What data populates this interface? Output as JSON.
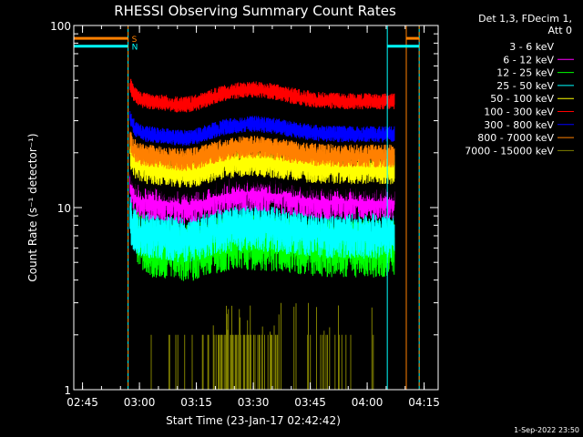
{
  "chart_data": {
    "type": "line",
    "title": "RHESSI Observing Summary Count Rates",
    "xlabel": "Start Time (23-Jan-17 02:42:42)",
    "ylabel": "Count Rate (s⁻¹ detector⁻¹)",
    "yscale": "log",
    "ylim": [
      1,
      100
    ],
    "xlim_minutes_after_start": [
      0,
      96
    ],
    "x_ticks": [
      {
        "label": "02:45",
        "t": 2.3
      },
      {
        "label": "03:00",
        "t": 17.3
      },
      {
        "label": "03:15",
        "t": 32.3
      },
      {
        "label": "03:30",
        "t": 47.3
      },
      {
        "label": "03:45",
        "t": 62.3
      },
      {
        "label": "04:00",
        "t": 77.3
      },
      {
        "label": "04:15",
        "t": 92.3
      }
    ],
    "y_ticks": [
      {
        "label": "1",
        "v": 1
      },
      {
        "label": "10",
        "v": 10
      },
      {
        "label": "100",
        "v": 100
      }
    ],
    "legend_header": [
      "Det 1,3, FDecim 1,",
      "Att 0"
    ],
    "legend_placement": "right",
    "data_window_minutes": [
      14.3,
      84.5
    ],
    "series": [
      {
        "name": "3 - 6 keV",
        "color": "#000000",
        "start": 14.8,
        "end": 84.5,
        "base": 13.5,
        "noise": 0.22,
        "bump": 0.12
      },
      {
        "name": "6 - 12 keV",
        "color": "#ff00ff",
        "start": 14.8,
        "end": 84.5,
        "base": 11.0,
        "noise": 0.25,
        "bump": 0.12
      },
      {
        "name": "12 - 25 keV",
        "color": "#00ff00",
        "start": 16.5,
        "end": 84.5,
        "base": 6.0,
        "noise": 0.35,
        "bump": 0.1
      },
      {
        "name": "25 - 50 keV",
        "color": "#00ffff",
        "start": 14.8,
        "end": 84.5,
        "base": 7.0,
        "noise": 0.28,
        "bump": 0.1
      },
      {
        "name": "50 - 100 keV",
        "color": "#ffff00",
        "start": 14.8,
        "end": 84.5,
        "base": 16.0,
        "noise": 0.18,
        "bump": 0.1
      },
      {
        "name": "100 - 300 keV",
        "color": "#ff0000",
        "start": 14.8,
        "end": 84.5,
        "base": 38.0,
        "noise": 0.1,
        "bump": 0.16
      },
      {
        "name": "300 - 800 keV",
        "color": "#0000ff",
        "start": 14.8,
        "end": 84.5,
        "base": 25.0,
        "noise": 0.1,
        "bump": 0.14
      },
      {
        "name": "800 - 7000 keV",
        "color": "#ff8000",
        "start": 14.8,
        "end": 84.5,
        "base": 19.0,
        "noise": 0.14,
        "bump": 0.12
      },
      {
        "name": "7000 - 15000 keV",
        "color": "#808000",
        "start": 14.8,
        "end": 84.5,
        "base": 1.0,
        "noise": 0,
        "bump": 0
      }
    ],
    "flags": [
      {
        "name": "S",
        "label": "S",
        "color": "#ff8000",
        "level": 85
      },
      {
        "name": "N",
        "label": "N",
        "color": "#00ffff",
        "level": 77
      }
    ],
    "vertical_markers": [
      {
        "t": 14.3,
        "color": "#00ffff",
        "style": "solid"
      },
      {
        "t": 14.3,
        "color": "#ff8000",
        "style": "dashed"
      },
      {
        "t": 82.6,
        "color": "#00ffff",
        "style": "solid"
      },
      {
        "t": 87.6,
        "color": "#ff8000",
        "style": "solid"
      },
      {
        "t": 91.0,
        "color": "#00ffff",
        "style": "solid"
      },
      {
        "t": 91.0,
        "color": "#ff8000",
        "style": "dashed"
      }
    ]
  },
  "footer": {
    "timestamp": "1-Sep-2022 23:50"
  }
}
